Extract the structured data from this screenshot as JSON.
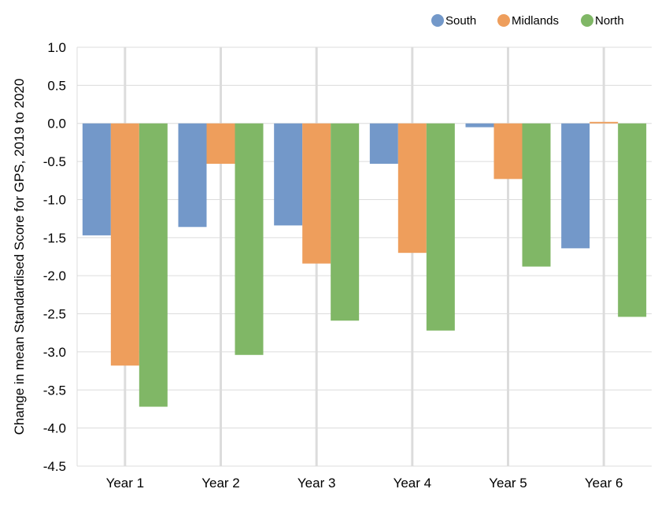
{
  "chart_data": {
    "type": "bar",
    "title": "",
    "xlabel": "",
    "ylabel": "Change in mean Standardised Score for GPS, 2019 to 2020",
    "categories": [
      "Year 1",
      "Year 2",
      "Year 3",
      "Year 4",
      "Year 5",
      "Year 6"
    ],
    "series": [
      {
        "name": "South",
        "color": "#7398c9",
        "values": [
          -1.47,
          -1.36,
          -1.34,
          -0.53,
          -0.05,
          -1.64
        ]
      },
      {
        "name": "Midlands",
        "color": "#ee9e5c",
        "values": [
          -3.18,
          -0.53,
          -1.84,
          -1.7,
          -0.73,
          0.02
        ]
      },
      {
        "name": "North",
        "color": "#80b766",
        "values": [
          -3.72,
          -3.04,
          -2.59,
          -2.72,
          -1.88,
          -2.54
        ]
      }
    ],
    "ylim": [
      -4.5,
      1.0
    ],
    "yticks": [
      "1.0",
      "0.5",
      "0.0",
      "-0.5",
      "-1.0",
      "-1.5",
      "-2.0",
      "-2.5",
      "-3.0",
      "-3.5",
      "-4.0",
      "-4.5"
    ],
    "grid": true,
    "legend_position": "top-right"
  }
}
